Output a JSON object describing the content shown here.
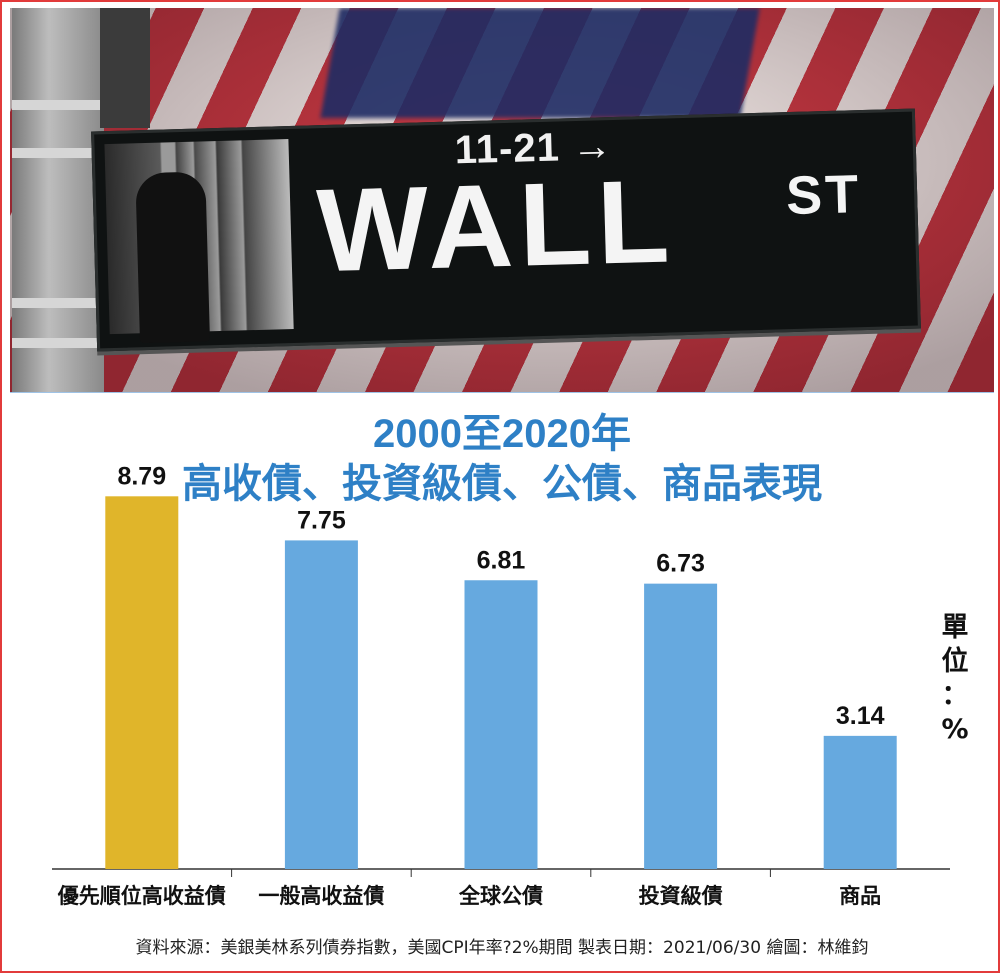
{
  "photo": {
    "sign_number": "11-21 →",
    "sign_main": "WALL",
    "sign_suffix": "ST"
  },
  "chart_data": {
    "type": "bar",
    "title": "2000至2020年",
    "subtitle": "高收債、投資級債、公債、商品表現",
    "categories": [
      "優先順位高收益債",
      "一般高收益債",
      "全球公債",
      "投資級債",
      "商品"
    ],
    "values": [
      8.79,
      7.75,
      6.81,
      6.73,
      3.14
    ],
    "data_labels": [
      "8.79",
      "7.75",
      "6.81",
      "6.73",
      "3.14"
    ],
    "bar_colors": [
      "#e0b52a",
      "#66a9df",
      "#66a9df",
      "#66a9df",
      "#66a9df"
    ],
    "unit_label": "單位：%",
    "ylim": [
      0,
      10
    ],
    "grid": false,
    "legend": "none"
  },
  "footer": {
    "source": "資料來源：美銀美林系列債券指數，美國CPI年率?2%期間  製表日期：2021/06/30  繪圖：林維鈞"
  }
}
